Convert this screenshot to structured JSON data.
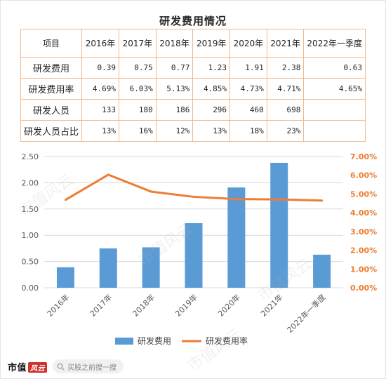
{
  "table": {
    "title": "研发费用情况",
    "header": [
      "项目",
      "2016年",
      "2017年",
      "2018年",
      "2019年",
      "2020年",
      "2021年",
      "2022年一季度"
    ],
    "rows": [
      {
        "label": "研发费用",
        "values": [
          "0.39",
          "0.75",
          "0.77",
          "1.23",
          "1.91",
          "2.38",
          "0.63"
        ]
      },
      {
        "label": "研发费用率",
        "values": [
          "4.69%",
          "6.03%",
          "5.13%",
          "4.85%",
          "4.73%",
          "4.71%",
          "4.65%"
        ]
      },
      {
        "label": "研发人员",
        "values": [
          "133",
          "180",
          "186",
          "296",
          "460",
          "698",
          ""
        ]
      },
      {
        "label": "研发人员占比",
        "values": [
          "13%",
          "16%",
          "12%",
          "13%",
          "18%",
          "23%",
          ""
        ]
      }
    ]
  },
  "chart_data": {
    "type": "bar",
    "categories": [
      "2016年",
      "2017年",
      "2018年",
      "2019年",
      "2020年",
      "2021年",
      "2022年一季度"
    ],
    "series": [
      {
        "name": "研发费用",
        "type": "bar",
        "axis": "left",
        "color": "#5b9bd5",
        "values": [
          0.39,
          0.75,
          0.77,
          1.23,
          1.91,
          2.38,
          0.63
        ]
      },
      {
        "name": "研发费用率",
        "type": "line",
        "axis": "right",
        "color": "#ed7d31",
        "values": [
          4.69,
          6.03,
          5.13,
          4.85,
          4.73,
          4.71,
          4.65
        ]
      }
    ],
    "y_left": {
      "min": 0,
      "max": 2.5,
      "step": 0.5,
      "tick_labels": [
        "0.00",
        "0.50",
        "1.00",
        "1.50",
        "2.00",
        "2.50"
      ]
    },
    "y_right": {
      "min": 0,
      "max": 7,
      "step": 1,
      "tick_labels": [
        "0.00%",
        "1.00%",
        "2.00%",
        "3.00%",
        "4.00%",
        "5.00%",
        "6.00%",
        "7.00%"
      ],
      "color": "#ed7d31"
    },
    "grid": true,
    "legend_position": "bottom"
  },
  "footer": {
    "brand": "市值",
    "brand_mark": "风云",
    "search_text": "买股之前搜一搜"
  },
  "watermark": "市值风云"
}
